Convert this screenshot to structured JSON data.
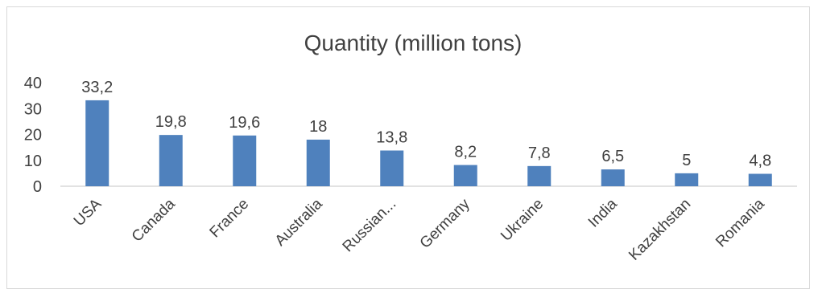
{
  "chart_data": {
    "type": "bar",
    "title": "Quantity (million tons)",
    "categories": [
      "USA",
      "Canada",
      "France",
      "Australia",
      "Russian...",
      "Germany",
      "Ukraine",
      "India",
      "Kazakhstan",
      "Romania"
    ],
    "values": [
      33.2,
      19.8,
      19.6,
      18,
      13.8,
      8.2,
      7.8,
      6.5,
      5,
      4.8
    ],
    "data_labels": [
      "33,2",
      "19,8",
      "19,6",
      "18",
      "13,8",
      "8,2",
      "7,8",
      "6,5",
      "5",
      "4,8"
    ],
    "y_ticks": [
      0,
      10,
      20,
      30,
      40
    ],
    "ylim": [
      0,
      40
    ],
    "xlabel": "",
    "ylabel": "",
    "grid": false,
    "legend": "none",
    "bar_color": "#4f81bd"
  }
}
